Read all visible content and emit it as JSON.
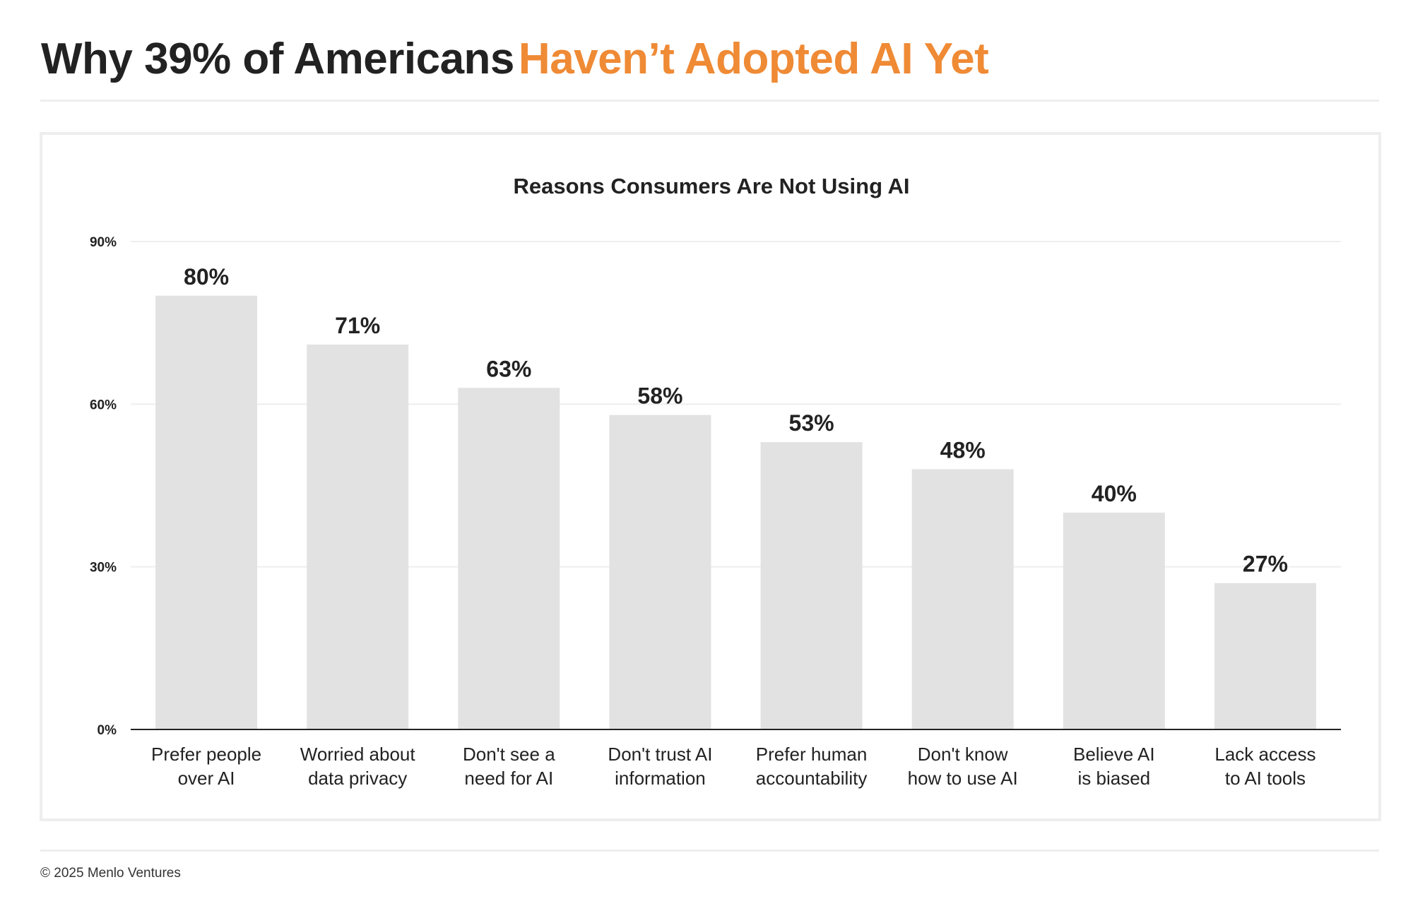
{
  "header": {
    "title_part1": "Why 39% of Americans",
    "title_part2": "Haven’t Adopted AI Yet"
  },
  "colors": {
    "title_dark": "#222222",
    "title_accent": "#ef8a35",
    "bar": "#e2e2e3",
    "grid": "#eeeeee",
    "axis": "#222222",
    "text": "#222222"
  },
  "chart_data": {
    "type": "bar",
    "title": "Reasons Consumers Are Not Using AI",
    "categories": [
      [
        "Prefer people",
        "over AI"
      ],
      [
        "Worried about",
        "data privacy"
      ],
      [
        "Don't see a",
        "need for AI"
      ],
      [
        "Don't trust AI",
        "information"
      ],
      [
        "Prefer human",
        "accountability"
      ],
      [
        "Don't know",
        "how to use AI"
      ],
      [
        "Believe AI",
        "is biased"
      ],
      [
        "Lack access",
        "to AI tools"
      ]
    ],
    "values": [
      80,
      71,
      63,
      58,
      53,
      48,
      40,
      27
    ],
    "value_labels": [
      "80%",
      "71%",
      "63%",
      "58%",
      "53%",
      "48%",
      "40%",
      "27%"
    ],
    "ylim": [
      0,
      90
    ],
    "yticks": [
      0,
      30,
      60,
      90
    ],
    "ytick_labels": [
      "0%",
      "30%",
      "60%",
      "90%"
    ],
    "grid": true,
    "xlabel": "",
    "ylabel": ""
  },
  "footer": {
    "copyright": "© 2025 Menlo Ventures"
  }
}
